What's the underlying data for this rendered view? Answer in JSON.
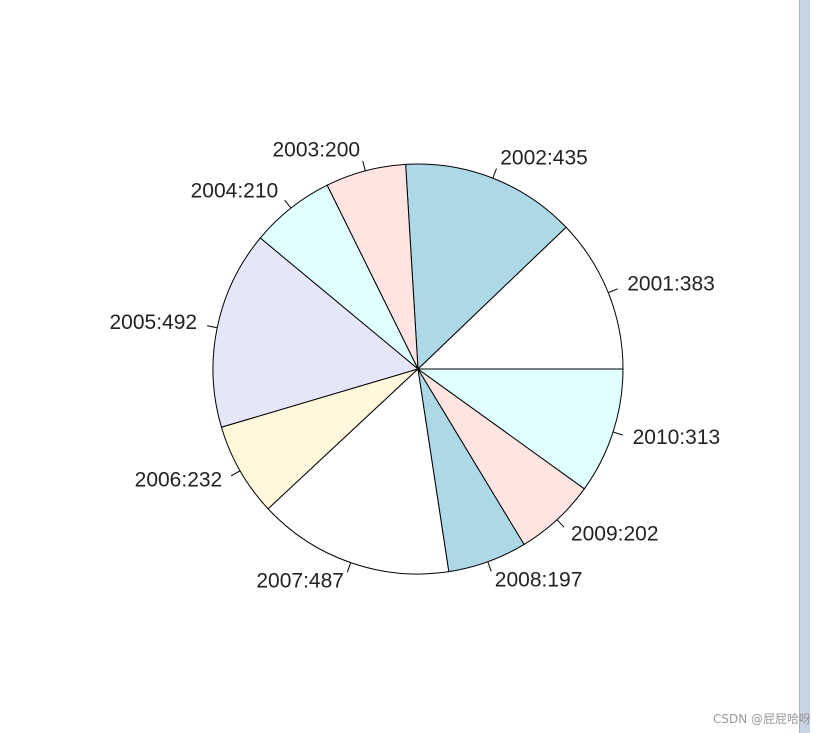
{
  "chart_data": {
    "type": "pie",
    "labels": [
      "2001:383",
      "2002:435",
      "2003:200",
      "2004:210",
      "2005:492",
      "2006:232",
      "2007:487",
      "2008:197",
      "2009:202",
      "2010:313"
    ],
    "values": [
      383,
      435,
      200,
      210,
      492,
      232,
      487,
      197,
      202,
      313
    ],
    "colors": [
      "#ffffff",
      "#add8e6",
      "#ffe4e1",
      "#e0ffff",
      "#e6e6fa",
      "#fff8dc",
      "#ffffff",
      "#add8e6",
      "#ffe4e1",
      "#e0ffff"
    ],
    "start_angle": 0,
    "direction": "counterclockwise"
  },
  "watermark": "CSDN @屁屁哈呀"
}
